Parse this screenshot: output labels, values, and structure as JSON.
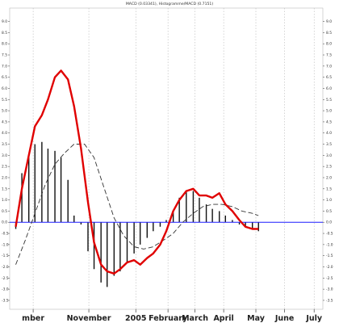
{
  "chart_data": {
    "type": "line",
    "title": "MACD (0.03341), Histogramme/MACD (0.7151)",
    "xlabel": "",
    "ylabel": "",
    "ylim": [
      -3.9,
      9.6
    ],
    "y_ticks": [
      "9.0",
      "8.5",
      "8.0",
      "7.5",
      "7.0",
      "6.5",
      "6.0",
      "5.5",
      "5.0",
      "4.5",
      "4.0",
      "3.5",
      "3.0",
      "2.5",
      "2.0",
      "1.5",
      "1.0",
      "0.5",
      "0.0",
      "-0.5",
      "-1.0",
      "-1.5",
      "-2.0",
      "-2.5",
      "-3.0",
      "-3.5"
    ],
    "y_tick_values": [
      9.0,
      8.5,
      8.0,
      7.5,
      7.0,
      6.5,
      6.0,
      5.5,
      5.0,
      4.5,
      4.0,
      3.5,
      3.0,
      2.5,
      2.0,
      1.5,
      1.0,
      0.5,
      0.0,
      -0.5,
      -1.0,
      -1.5,
      -2.0,
      -2.5,
      -3.0,
      -3.5
    ],
    "x_range": [
      0,
      36
    ],
    "x_ticks": [
      {
        "label": "mber",
        "x": 2.7
      },
      {
        "label": "November",
        "x": 9.1
      },
      {
        "label": "2005",
        "x": 14.5
      },
      {
        "label": "February",
        "x": 18.2
      },
      {
        "label": "March",
        "x": 21.3
      },
      {
        "label": "April",
        "x": 24.6
      },
      {
        "label": "May",
        "x": 28.3
      },
      {
        "label": "June",
        "x": 31.6
      },
      {
        "label": "July",
        "x": 35.0
      }
    ],
    "grid": true,
    "baseline": {
      "value": 0.0,
      "color": "#1a1aff"
    },
    "series": [
      {
        "name": "",
        "kind": "histogram",
        "color": "#111111",
        "x": [
          0.7,
          1.4,
          2.2,
          2.9,
          3.7,
          4.4,
          5.2,
          5.9,
          6.7,
          7.4,
          8.2,
          9.0,
          9.7,
          10.5,
          11.2,
          12.0,
          12.7,
          13.5,
          14.3,
          15.0,
          15.8,
          16.5,
          17.3,
          18.0,
          18.8,
          19.5,
          20.3,
          21.1,
          21.8,
          22.6,
          23.3,
          24.1,
          24.8,
          25.6,
          26.4,
          27.1,
          27.9,
          28.6
        ],
        "values": [
          -0.3,
          2.2,
          3.0,
          3.5,
          3.6,
          3.3,
          3.2,
          2.9,
          1.9,
          0.3,
          -0.1,
          -1.3,
          -2.1,
          -2.7,
          -2.9,
          -2.4,
          -2.2,
          -1.8,
          -1.4,
          -1.0,
          -0.7,
          -0.4,
          -0.2,
          0.1,
          0.5,
          1.1,
          1.4,
          1.4,
          1.1,
          0.8,
          0.6,
          0.5,
          0.3,
          0.1,
          -0.1,
          -0.2,
          -0.3,
          -0.4
        ]
      },
      {
        "name": "",
        "kind": "line",
        "color": "#e00000",
        "x": [
          0.7,
          1.4,
          2.2,
          2.9,
          3.7,
          4.4,
          5.2,
          5.9,
          6.7,
          7.4,
          8.2,
          9.0,
          9.7,
          10.5,
          11.2,
          12.0,
          12.7,
          13.5,
          14.3,
          15.0,
          15.8,
          16.5,
          17.3,
          18.0,
          18.8,
          19.5,
          20.3,
          21.1,
          21.8,
          22.6,
          23.3,
          24.1,
          24.8,
          25.6,
          26.4,
          27.1,
          27.9,
          28.6
        ],
        "values": [
          -0.2,
          1.5,
          3.0,
          4.3,
          4.8,
          5.5,
          6.5,
          6.8,
          6.4,
          5.2,
          3.3,
          0.9,
          -0.9,
          -1.9,
          -2.2,
          -2.3,
          -2.1,
          -1.8,
          -1.7,
          -1.9,
          -1.6,
          -1.4,
          -1.0,
          -0.4,
          0.5,
          1.0,
          1.4,
          1.5,
          1.2,
          1.2,
          1.1,
          1.3,
          0.8,
          0.5,
          0.1,
          -0.2,
          -0.3,
          -0.3
        ]
      },
      {
        "name": "",
        "kind": "dashed",
        "color": "#333333",
        "x": [
          0.7,
          1.8,
          2.9,
          4.1,
          5.2,
          6.3,
          7.4,
          8.6,
          9.7,
          10.8,
          12.0,
          13.1,
          14.3,
          15.4,
          16.5,
          17.7,
          18.8,
          19.9,
          21.1,
          22.2,
          23.3,
          24.4,
          25.6,
          26.7,
          27.9,
          28.6
        ],
        "values": [
          -1.9,
          -0.8,
          0.4,
          1.7,
          2.6,
          3.1,
          3.5,
          3.5,
          2.9,
          1.6,
          0.2,
          -0.6,
          -1.1,
          -1.2,
          -1.1,
          -0.8,
          -0.5,
          0.0,
          0.4,
          0.7,
          0.8,
          0.8,
          0.7,
          0.5,
          0.4,
          0.3
        ]
      }
    ]
  }
}
